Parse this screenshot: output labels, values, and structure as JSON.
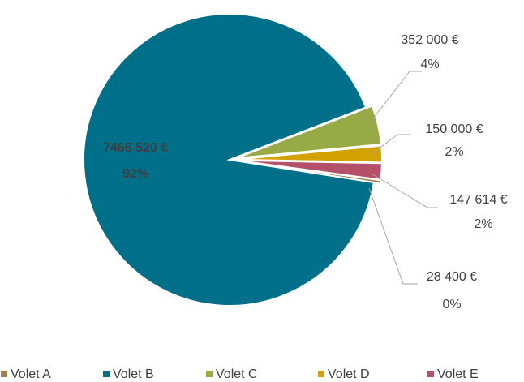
{
  "chart_data": {
    "type": "pie",
    "categories": [
      "Volet A",
      "Volet B",
      "Volet C",
      "Volet D",
      "Volet E"
    ],
    "values": [
      28400,
      7466520,
      352000,
      150000,
      147614
    ],
    "value_labels": [
      "28 400 €",
      "7466 520 €",
      "352 000 €",
      "150 000 €",
      "147 614 €"
    ],
    "percents": [
      0,
      92,
      4,
      2,
      2
    ],
    "percent_labels": [
      "0%",
      "92%",
      "4%",
      "2%",
      "2%"
    ],
    "colors": [
      "#a07f4f",
      "#006f89",
      "#98aa45",
      "#d3a200",
      "#b4506a"
    ],
    "legend": "bottom"
  }
}
